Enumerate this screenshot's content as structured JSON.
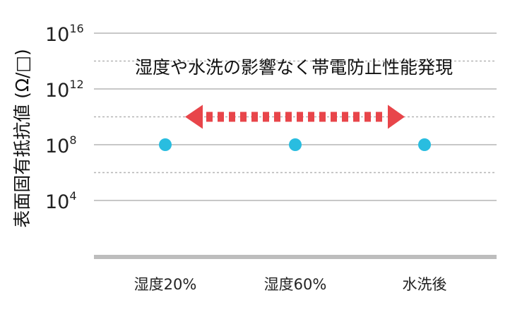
{
  "chart_data": {
    "type": "scatter",
    "ylabel": "表面固有抵抗値 (Ω/□)",
    "yscale": "log",
    "ylim": [
      1.0,
      1e+16
    ],
    "yticks": [
      {
        "value": 1e+16,
        "base": "10",
        "exp": "16"
      },
      {
        "value": 1000000000000.0,
        "base": "10",
        "exp": "12"
      },
      {
        "value": 100000000.0,
        "base": "10",
        "exp": "8"
      },
      {
        "value": 10000.0,
        "base": "10",
        "exp": "4"
      }
    ],
    "minor_gridlines": [
      100000000000000.0,
      10000000000.0,
      1000000.0
    ],
    "categories": [
      "湿度20%",
      "湿度60%",
      "水洗後"
    ],
    "values": [
      100000000.0,
      100000000.0,
      100000000.0
    ],
    "annotation": "湿度や水洗の影響なく帯電防止性能発現",
    "grid": true,
    "legend": "none",
    "colors": {
      "point": "#29bde0",
      "arrow": "#e8454a",
      "grid_major": "#c8c8c8",
      "grid_minor": "#b5b5b5",
      "baseline": "#bdbdbd"
    }
  }
}
